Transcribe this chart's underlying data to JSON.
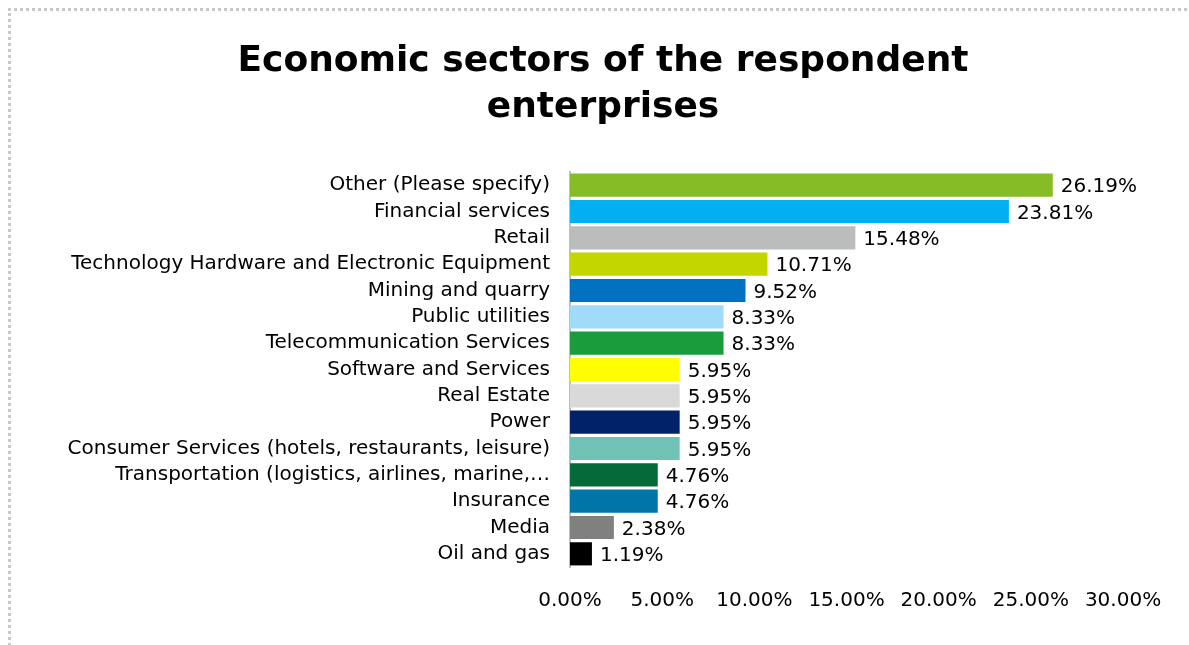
{
  "chart_data": {
    "type": "bar",
    "orientation": "horizontal",
    "title": "Economic sectors of the respondent enterprises",
    "categories": [
      "Other (Please specify)",
      "Financial services",
      "Retail",
      "Technology Hardware and Electronic Equipment",
      "Mining and quarry",
      "Public utilities",
      "Telecommunication Services",
      "Software and Services",
      "Real Estate",
      "Power",
      "Consumer Services (hotels, restaurants, leisure)",
      "Transportation (logistics, airlines, marine,…",
      "Insurance",
      "Media",
      "Oil and gas"
    ],
    "values": [
      26.19,
      23.81,
      15.48,
      10.71,
      9.52,
      8.33,
      8.33,
      5.95,
      5.95,
      5.95,
      5.95,
      4.76,
      4.76,
      2.38,
      1.19
    ],
    "value_labels": [
      "26.19%",
      "23.81%",
      "15.48%",
      "10.71%",
      "9.52%",
      "8.33%",
      "8.33%",
      "5.95%",
      "5.95%",
      "5.95%",
      "5.95%",
      "4.76%",
      "4.76%",
      "2.38%",
      "1.19%"
    ],
    "colors": [
      "#86bc25",
      "#00b0f0",
      "#bbbcbc",
      "#c4d600",
      "#0070c0",
      "#a0dcfa",
      "#1a9b3c",
      "#ffff00",
      "#d9d9d9",
      "#012169",
      "#6fc2b4",
      "#046a38",
      "#0076a8",
      "#808080",
      "#000000"
    ],
    "xlim": [
      0,
      30
    ],
    "xticks": [
      {
        "value": 0,
        "label": "0.00%"
      },
      {
        "value": 5,
        "label": "5.00%"
      },
      {
        "value": 10,
        "label": "10.00%"
      },
      {
        "value": 15,
        "label": "15.00%"
      },
      {
        "value": 20,
        "label": "20.00%"
      },
      {
        "value": 25,
        "label": "25.00%"
      },
      {
        "value": 30,
        "label": "30.00%"
      }
    ],
    "grid": false,
    "legend": false
  }
}
